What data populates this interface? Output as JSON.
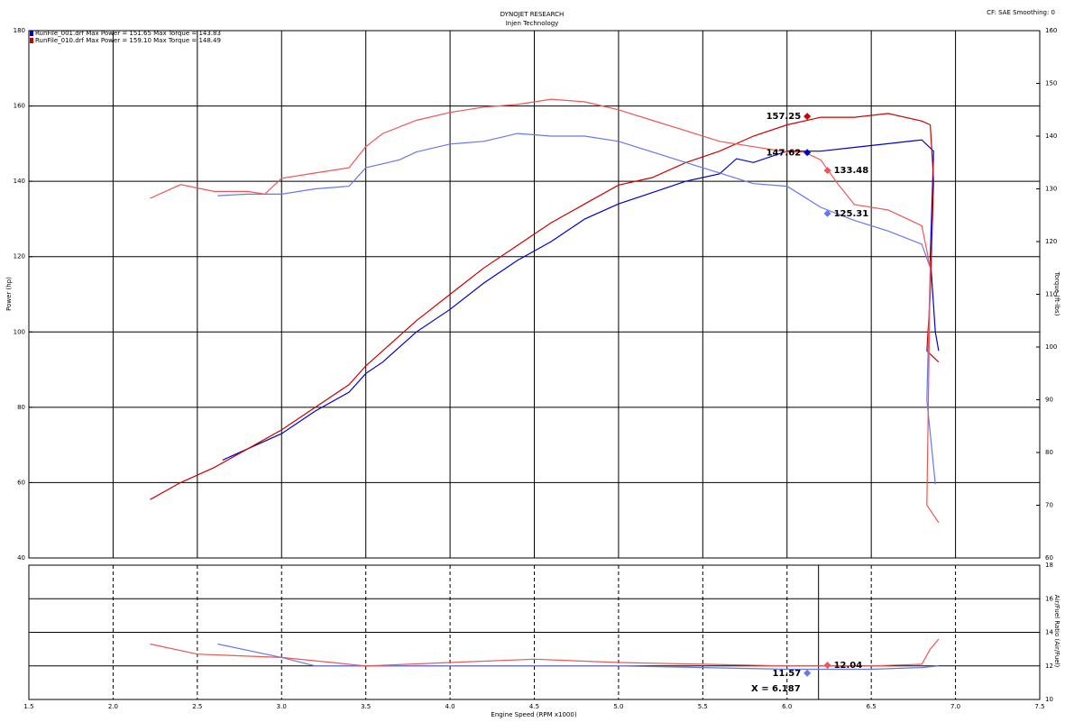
{
  "chart_data": [
    {
      "type": "line",
      "title": "DYNOJET RESEARCH",
      "subtitle": "Injen Technology",
      "corner_note": "CF: SAE  Smoothing: 0",
      "ylabel": "Power (hp)",
      "y2label": "Torque (ft-lbs)",
      "xlim": [
        1.5,
        7.5
      ],
      "ylim": [
        40,
        180
      ],
      "yticks": [
        40,
        60,
        80,
        100,
        120,
        140,
        160,
        180
      ],
      "y2lim": [
        60,
        160
      ],
      "y2ticks": [
        60,
        70,
        80,
        90,
        100,
        110,
        120,
        130,
        140,
        150,
        160
      ],
      "grid": true,
      "legend": "top-left",
      "series": [
        {
          "name": "RunFile_001.drf Max Power = 151.65   Max Torque = 143.83",
          "color": "#0000cc",
          "x": [
            2.65,
            2.8,
            3.0,
            3.2,
            3.4,
            3.5,
            3.6,
            3.8,
            4.0,
            4.2,
            4.4,
            4.6,
            4.8,
            5.0,
            5.2,
            5.4,
            5.6,
            5.7,
            5.8,
            6.0,
            6.2,
            6.4,
            6.6,
            6.8,
            6.87,
            6.85,
            6.88,
            6.9
          ],
          "values": [
            66,
            69,
            73,
            79,
            84,
            89,
            92,
            100,
            106,
            113,
            119,
            124,
            130,
            134,
            137,
            140,
            142,
            146,
            145,
            148,
            148,
            149,
            150,
            151,
            148,
            120,
            100,
            95
          ]
        },
        {
          "name": "RunFile_010.drf Max Power = 159.10   Max Torque = 148.49",
          "color": "#cc0000",
          "x": [
            2.22,
            2.4,
            2.6,
            2.8,
            3.0,
            3.2,
            3.4,
            3.5,
            3.6,
            3.8,
            4.0,
            4.2,
            4.4,
            4.6,
            4.8,
            5.0,
            5.2,
            5.4,
            5.6,
            5.8,
            6.0,
            6.2,
            6.4,
            6.6,
            6.8,
            6.85,
            6.87,
            6.85,
            6.83,
            6.9
          ],
          "values": [
            55.5,
            60,
            64,
            69,
            74,
            80,
            86,
            91,
            95,
            103,
            110,
            117,
            123,
            129,
            134,
            139,
            141,
            145,
            148,
            152,
            155,
            157,
            157,
            158,
            156,
            155,
            140,
            110,
            95,
            92
          ]
        },
        {
          "axis": "y2",
          "color": "#6677ee",
          "x": [
            2.62,
            2.8,
            3.0,
            3.2,
            3.4,
            3.5,
            3.7,
            3.8,
            4.0,
            4.2,
            4.4,
            4.6,
            4.8,
            5.0,
            5.2,
            5.4,
            5.6,
            5.8,
            6.0,
            6.2,
            6.4,
            6.6,
            6.8,
            6.85,
            6.83,
            6.88
          ],
          "values": [
            128.7,
            129,
            129,
            130,
            130.5,
            134,
            135.5,
            137,
            138.5,
            139,
            140.5,
            140,
            140,
            139,
            137,
            135,
            133,
            131,
            130.5,
            126.5,
            124,
            122,
            119.5,
            115,
            90,
            74
          ]
        },
        {
          "axis": "y2",
          "color": "#ee5555",
          "x": [
            2.22,
            2.4,
            2.6,
            2.8,
            2.9,
            3.0,
            3.2,
            3.4,
            3.5,
            3.6,
            3.8,
            4.0,
            4.2,
            4.4,
            4.6,
            4.8,
            5.0,
            5.2,
            5.4,
            5.6,
            5.8,
            6.0,
            6.1,
            6.2,
            6.3,
            6.4,
            6.6,
            6.8,
            6.85,
            6.83,
            6.9
          ],
          "values": [
            128.2,
            130.8,
            129.5,
            129.5,
            129,
            132,
            133,
            134,
            138,
            140.5,
            143,
            144.5,
            145.5,
            146,
            147,
            146.5,
            145,
            143,
            141,
            139,
            138,
            137,
            137,
            135.5,
            131,
            127,
            126,
            123,
            115,
            70,
            66.7
          ]
        }
      ],
      "annotations": [
        {
          "x": 6.12,
          "value": 157.25,
          "color": "#cc0000"
        },
        {
          "x": 6.12,
          "value": 147.62,
          "color": "#0000cc"
        },
        {
          "x": 6.24,
          "value": 133.48,
          "axis": "y2",
          "color": "#ee5555"
        },
        {
          "x": 6.24,
          "value": 125.31,
          "axis": "y2",
          "color": "#6677ee"
        }
      ]
    },
    {
      "type": "line",
      "ylabel": "Air/Fuel Ratio (Air/Fuel)",
      "xlabel": "Engine Speed (RPM x1000)",
      "xlim": [
        1.5,
        7.5
      ],
      "xticks": [
        1.5,
        {
          "value": 2,
          "label": "2.0"
        },
        2.5,
        {
          "value": 3,
          "label": "3.0"
        },
        3.5,
        {
          "value": 4,
          "label": "4.0"
        },
        4.5,
        {
          "value": 5,
          "label": "5.0"
        },
        5.5,
        {
          "value": 6,
          "label": "6.0"
        },
        6.5,
        {
          "value": 7,
          "label": "7.0"
        },
        7.5
      ],
      "ylim": [
        10,
        18
      ],
      "yticks": [
        10,
        12,
        14,
        16,
        18
      ],
      "grid": true,
      "cursor_x": 6.187,
      "cursor_label": "X = 6.187",
      "series": [
        {
          "color": "#6677ee",
          "x": [
            2.62,
            3.0,
            3.2,
            4.0,
            5.0,
            5.5,
            6.0,
            6.5,
            6.8,
            6.9
          ],
          "values": [
            13.3,
            12.5,
            12.0,
            12.0,
            12.0,
            11.9,
            11.8,
            11.8,
            11.9,
            12.0
          ]
        },
        {
          "color": "#ee5555",
          "x": [
            2.22,
            2.5,
            3.0,
            3.5,
            4.0,
            4.5,
            5.0,
            5.5,
            6.0,
            6.5,
            6.8,
            6.85,
            6.9
          ],
          "values": [
            13.3,
            12.7,
            12.5,
            12.0,
            12.2,
            12.4,
            12.2,
            12.1,
            12.0,
            12.0,
            12.1,
            13.0,
            13.6
          ]
        }
      ],
      "annotations": [
        {
          "x": 6.24,
          "value": 12.04,
          "color": "#ee5555"
        },
        {
          "x": 6.12,
          "value": 11.57,
          "color": "#6677ee"
        }
      ]
    }
  ]
}
